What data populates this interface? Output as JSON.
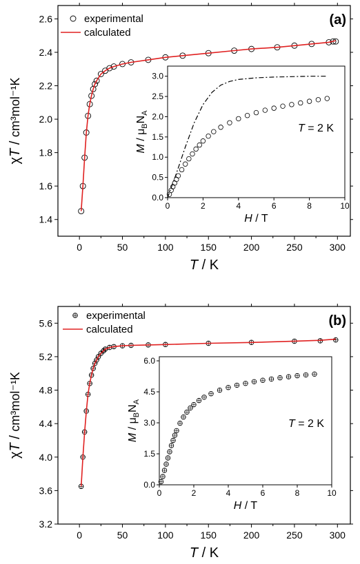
{
  "chart_data": [
    {
      "type": "scatter",
      "panel_label": "(a)",
      "xlabel": {
        "sym": "T",
        "unit": "K"
      },
      "ylabel": {
        "pre": "χ",
        "sym": "T",
        "rest": "cm³mol⁻¹K"
      },
      "xlim": [
        -25,
        315
      ],
      "ylim": [
        1.3,
        2.68
      ],
      "xticks": [
        0,
        50,
        100,
        150,
        200,
        250,
        300
      ],
      "yticks": [
        1.4,
        1.6,
        1.8,
        2.0,
        2.2,
        2.4,
        2.6
      ],
      "legend": {
        "position": "top-left",
        "experimental": "experimental",
        "calculated": "calculated"
      },
      "series": [
        {
          "name": "experimental",
          "style": "open-circle",
          "color": "#000000",
          "x": [
            2,
            4,
            6,
            8,
            10,
            12,
            14,
            16,
            18,
            20,
            25,
            30,
            35,
            40,
            50,
            60,
            80,
            100,
            120,
            150,
            180,
            200,
            230,
            250,
            270,
            290,
            295,
            298
          ],
          "y": [
            1.45,
            1.6,
            1.77,
            1.92,
            2.02,
            2.09,
            2.14,
            2.18,
            2.21,
            2.23,
            2.27,
            2.29,
            2.305,
            2.315,
            2.33,
            2.34,
            2.355,
            2.37,
            2.38,
            2.395,
            2.41,
            2.42,
            2.43,
            2.44,
            2.45,
            2.46,
            2.465,
            2.465
          ]
        },
        {
          "name": "calculated",
          "style": "line",
          "color": "#e02020",
          "x": [
            2,
            4,
            6,
            8,
            10,
            12,
            14,
            16,
            18,
            20,
            25,
            30,
            35,
            40,
            50,
            60,
            80,
            100,
            120,
            150,
            180,
            200,
            230,
            250,
            270,
            290,
            298
          ],
          "y": [
            1.45,
            1.6,
            1.77,
            1.92,
            2.02,
            2.09,
            2.14,
            2.18,
            2.21,
            2.23,
            2.27,
            2.29,
            2.305,
            2.315,
            2.33,
            2.34,
            2.355,
            2.37,
            2.38,
            2.395,
            2.41,
            2.42,
            2.43,
            2.44,
            2.45,
            2.46,
            2.47
          ]
        }
      ],
      "inset": {
        "xlabel": {
          "sym": "H",
          "unit": "T"
        },
        "ylabel": {
          "sym": "M",
          "unit": "μ",
          "sub1": "B",
          "mid": "N",
          "sub2": "A"
        },
        "annotation": {
          "sym": "T",
          "rest": "= 2 K"
        },
        "xlim": [
          0,
          10
        ],
        "ylim": [
          0,
          3.25
        ],
        "xticks": [
          0,
          2,
          4,
          6,
          8,
          10
        ],
        "yticks": [
          0.0,
          0.5,
          1.0,
          1.5,
          2.0,
          2.5,
          3.0
        ],
        "series": [
          {
            "style": "open-circle",
            "color": "#000000",
            "x": [
              0.1,
              0.2,
              0.3,
              0.4,
              0.5,
              0.6,
              0.8,
              1.0,
              1.2,
              1.4,
              1.6,
              1.8,
              2.0,
              2.3,
              2.6,
              3.0,
              3.5,
              4.0,
              4.5,
              5.0,
              5.5,
              6.0,
              6.5,
              7.0,
              7.5,
              8.0,
              8.5,
              9.0
            ],
            "y": [
              0.08,
              0.18,
              0.27,
              0.36,
              0.45,
              0.54,
              0.69,
              0.83,
              0.96,
              1.08,
              1.2,
              1.3,
              1.4,
              1.52,
              1.63,
              1.74,
              1.85,
              1.95,
              2.03,
              2.1,
              2.16,
              2.21,
              2.26,
              2.3,
              2.34,
              2.38,
              2.42,
              2.45
            ]
          },
          {
            "style": "dash-dot",
            "color": "#000000",
            "x": [
              0,
              0.5,
              1.0,
              1.5,
              2.0,
              2.5,
              3.0,
              3.5,
              4.0,
              5.0,
              6.0,
              7.0,
              8.0,
              9.0
            ],
            "y": [
              0,
              0.6,
              1.25,
              1.85,
              2.3,
              2.6,
              2.78,
              2.87,
              2.92,
              2.96,
              2.98,
              2.99,
              3.0,
              3.0
            ]
          }
        ]
      }
    },
    {
      "type": "scatter",
      "panel_label": "(b)",
      "xlabel": {
        "sym": "T",
        "unit": "K"
      },
      "ylabel": {
        "pre": "χ",
        "sym": "T",
        "rest": "cm³mol⁻¹K"
      },
      "xlim": [
        -25,
        315
      ],
      "ylim": [
        3.2,
        5.8
      ],
      "xticks": [
        0,
        50,
        100,
        150,
        200,
        250,
        300
      ],
      "yticks": [
        3.2,
        3.6,
        4.0,
        4.4,
        4.8,
        5.2,
        5.6
      ],
      "legend": {
        "position": "top-left",
        "experimental": "experimental",
        "calculated": "calculated"
      },
      "series": [
        {
          "name": "experimental",
          "style": "crossed-circle",
          "color": "#000000",
          "x": [
            2,
            4,
            6,
            8,
            10,
            12,
            14,
            16,
            18,
            20,
            22,
            25,
            28,
            30,
            35,
            40,
            50,
            60,
            80,
            100,
            150,
            200,
            250,
            280,
            298
          ],
          "y": [
            3.65,
            4.0,
            4.3,
            4.55,
            4.75,
            4.88,
            4.98,
            5.06,
            5.12,
            5.16,
            5.2,
            5.24,
            5.27,
            5.29,
            5.31,
            5.32,
            5.33,
            5.335,
            5.34,
            5.345,
            5.36,
            5.37,
            5.385,
            5.39,
            5.4
          ]
        },
        {
          "name": "calculated",
          "style": "line",
          "color": "#e02020",
          "x": [
            2,
            4,
            6,
            8,
            10,
            12,
            14,
            16,
            18,
            20,
            22,
            25,
            28,
            30,
            35,
            40,
            50,
            60,
            80,
            100,
            150,
            200,
            250,
            280,
            298
          ],
          "y": [
            3.65,
            4.0,
            4.3,
            4.55,
            4.75,
            4.88,
            4.98,
            5.06,
            5.12,
            5.16,
            5.2,
            5.24,
            5.27,
            5.29,
            5.31,
            5.32,
            5.33,
            5.335,
            5.34,
            5.345,
            5.36,
            5.37,
            5.385,
            5.395,
            5.41
          ]
        }
      ],
      "inset": {
        "xlabel": {
          "sym": "H",
          "unit": "T"
        },
        "ylabel": {
          "sym": "M",
          "unit": "μ",
          "sub1": "B",
          "mid": "N",
          "sub2": "A"
        },
        "annotation": {
          "sym": "T",
          "rest": "= 2 K"
        },
        "xlim": [
          0,
          10
        ],
        "ylim": [
          0,
          6.2
        ],
        "xticks": [
          0,
          2,
          4,
          6,
          8,
          10
        ],
        "yticks": [
          0.0,
          1.5,
          3.0,
          4.5,
          6.0
        ],
        "series": [
          {
            "style": "crossed-circle",
            "color": "#000000",
            "x": [
              0.1,
              0.2,
              0.3,
              0.4,
              0.5,
              0.6,
              0.7,
              0.8,
              0.9,
              1.0,
              1.2,
              1.4,
              1.6,
              1.8,
              2.0,
              2.3,
              2.6,
              3.0,
              3.5,
              4.0,
              4.5,
              5.0,
              5.5,
              6.0,
              6.5,
              7.0,
              7.5,
              8.0,
              8.5,
              9.0
            ],
            "y": [
              0.15,
              0.4,
              0.7,
              1.0,
              1.3,
              1.6,
              1.9,
              2.15,
              2.4,
              2.62,
              2.98,
              3.28,
              3.52,
              3.72,
              3.88,
              4.08,
              4.24,
              4.41,
              4.58,
              4.71,
              4.82,
              4.91,
              4.99,
              5.06,
              5.12,
              5.18,
              5.23,
              5.28,
              5.32,
              5.36
            ]
          }
        ]
      }
    }
  ]
}
